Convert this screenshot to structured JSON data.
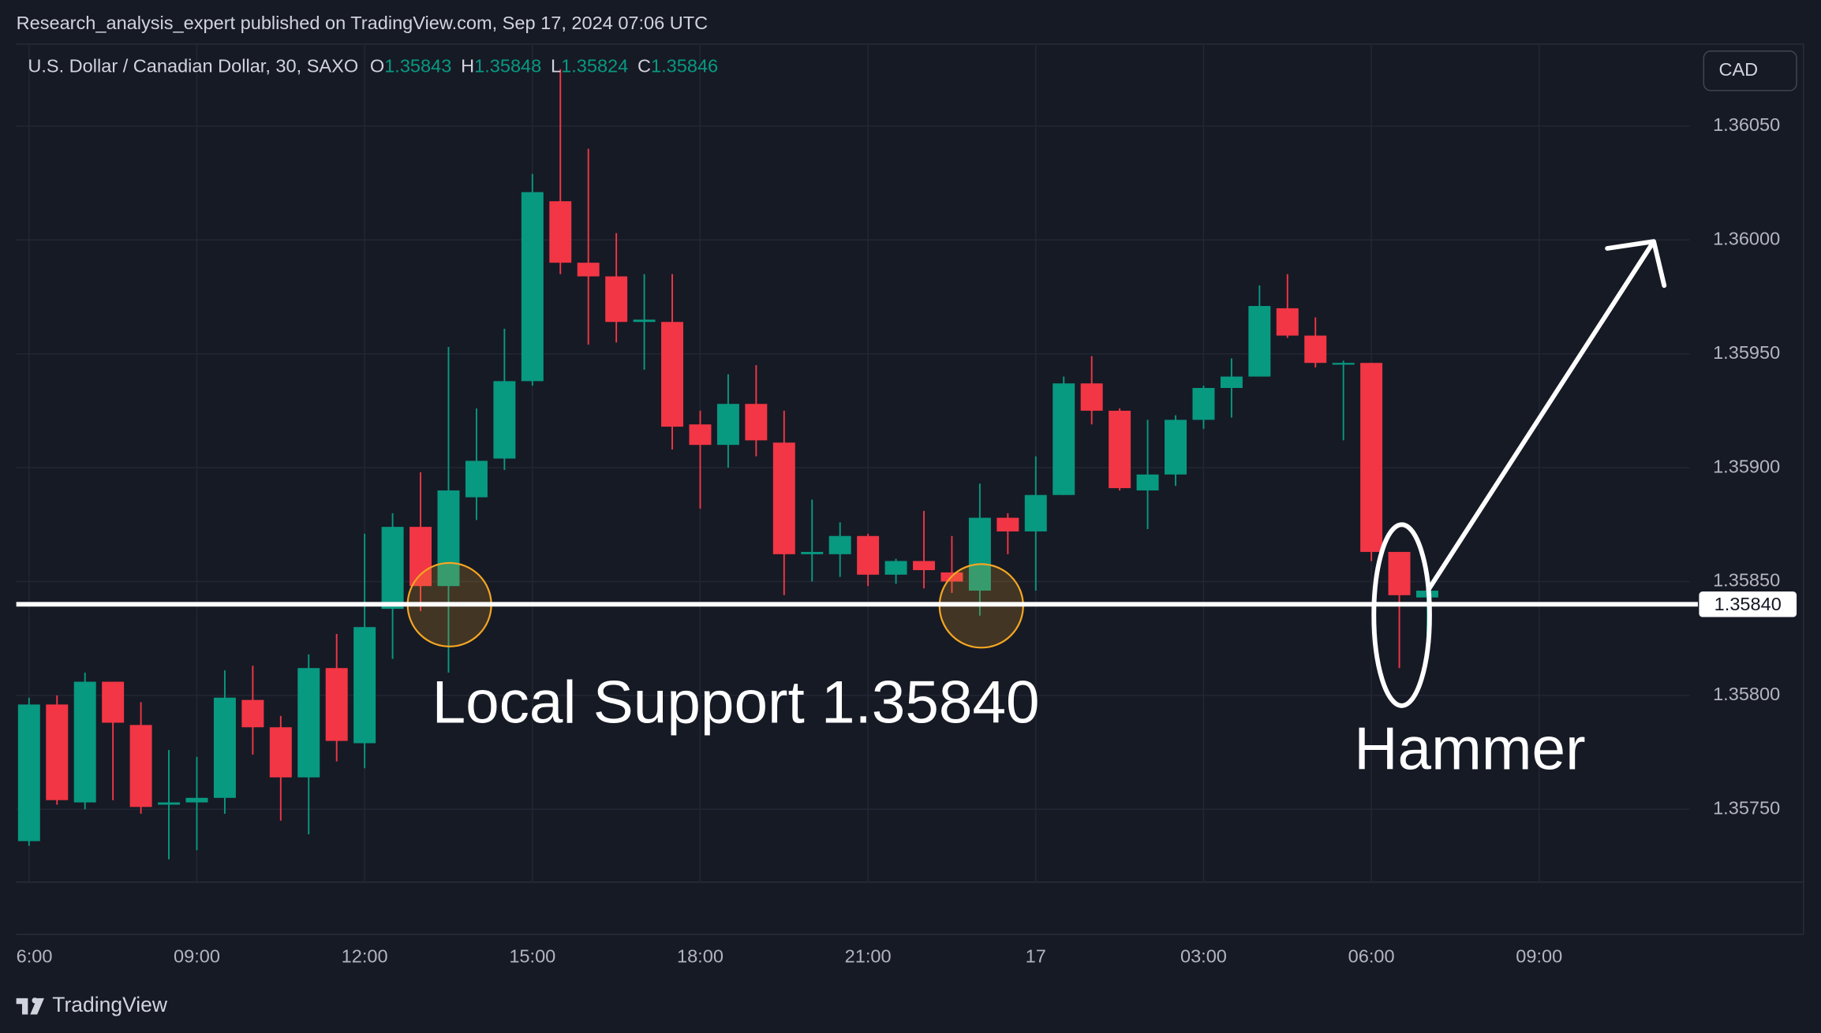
{
  "publisher_line": "Research_analysis_expert published on TradingView.com, Sep 17, 2024 07:06 UTC",
  "brand": "TradingView",
  "currency_button": "CAD",
  "chart_data": {
    "type": "candlestick",
    "title": "U.S. Dollar / Canadian Dollar, 30, SAXO",
    "ohlc_labels": [
      "O",
      "H",
      "L",
      "C"
    ],
    "up_color": "#089981",
    "down_color": "#f23645",
    "categories": [
      "6:00",
      null,
      null,
      null,
      null,
      null,
      "09:00",
      null,
      null,
      null,
      null,
      null,
      "12:00",
      null,
      null,
      null,
      null,
      null,
      "15:00",
      null,
      null,
      null,
      null,
      null,
      "18:00",
      null,
      null,
      null,
      null,
      null,
      "21:00",
      null,
      null,
      null,
      null,
      null,
      "17",
      null,
      null,
      null,
      null,
      null,
      "03:00",
      null,
      null,
      null,
      null,
      null,
      "06:00",
      null,
      null,
      null,
      null,
      null,
      "09:00",
      null,
      null,
      null,
      null,
      null
    ],
    "open": [
      1.35736,
      1.35796,
      1.35753,
      1.35806,
      1.35787,
      1.35752,
      1.35753,
      1.35755,
      1.35798,
      1.35786,
      1.35764,
      1.35812,
      1.35779,
      1.35838,
      1.35874,
      1.35848,
      1.35887,
      1.35904,
      1.35938,
      1.36017,
      1.3599,
      1.35984,
      1.35964,
      1.35964,
      1.35919,
      1.3591,
      1.35928,
      1.35911,
      1.35862,
      1.35862,
      1.3587,
      1.35853,
      1.35859,
      1.35854,
      1.35846,
      1.35878,
      1.35872,
      1.35888,
      1.35937,
      1.35925,
      1.3589,
      1.35897,
      1.35921,
      1.35935,
      1.3594,
      1.3597,
      1.35958,
      1.35946,
      1.35946,
      1.35863,
      1.35843,
      null,
      null,
      null,
      null,
      null,
      null,
      null,
      null,
      null
    ],
    "high": [
      1.35799,
      1.358,
      1.3581,
      1.35806,
      1.35797,
      1.35776,
      1.35773,
      1.35811,
      1.35813,
      1.35791,
      1.35818,
      1.35827,
      1.35871,
      1.3588,
      1.35898,
      1.35953,
      1.35926,
      1.35961,
      1.36029,
      1.36075,
      1.3604,
      1.36003,
      1.35985,
      1.35985,
      1.35925,
      1.35941,
      1.35945,
      1.35925,
      1.35886,
      1.35876,
      1.35871,
      1.3586,
      1.35881,
      1.3587,
      1.35893,
      1.3588,
      1.35905,
      1.3594,
      1.35949,
      1.35926,
      1.35921,
      1.35923,
      1.35936,
      1.35948,
      1.3598,
      1.35985,
      1.35966,
      1.35947,
      1.35946,
      1.35863,
      1.35848,
      null,
      null,
      null,
      null,
      null,
      null,
      null,
      null,
      null
    ],
    "low": [
      1.35734,
      1.35752,
      1.3575,
      1.35754,
      1.35748,
      1.35728,
      1.35732,
      1.35748,
      1.35774,
      1.35745,
      1.35739,
      1.35771,
      1.35768,
      1.35816,
      1.35837,
      1.3581,
      1.35877,
      1.35899,
      1.35936,
      1.35985,
      1.35954,
      1.35955,
      1.35943,
      1.35908,
      1.35882,
      1.359,
      1.35905,
      1.35844,
      1.3585,
      1.35852,
      1.35848,
      1.35849,
      1.35847,
      1.35845,
      1.35835,
      1.35862,
      1.35846,
      1.35888,
      1.35919,
      1.3589,
      1.35873,
      1.35892,
      1.35917,
      1.35922,
      1.3594,
      1.35957,
      1.35944,
      1.35912,
      1.35859,
      1.35812,
      1.35824,
      null,
      null,
      null,
      null,
      null,
      null,
      null,
      null,
      null
    ],
    "close": [
      1.35796,
      1.35754,
      1.35806,
      1.35788,
      1.35751,
      1.35753,
      1.35755,
      1.35799,
      1.35786,
      1.35764,
      1.35812,
      1.3578,
      1.3583,
      1.35874,
      1.35848,
      1.3589,
      1.35903,
      1.35938,
      1.36021,
      1.3599,
      1.35984,
      1.35964,
      1.35965,
      1.35918,
      1.3591,
      1.35928,
      1.35912,
      1.35862,
      1.35863,
      1.3587,
      1.35853,
      1.35859,
      1.35855,
      1.3585,
      1.35878,
      1.35872,
      1.35888,
      1.35937,
      1.35925,
      1.35891,
      1.35897,
      1.35921,
      1.35935,
      1.3594,
      1.35971,
      1.35958,
      1.35946,
      1.35946,
      1.35863,
      1.35844,
      1.35846,
      null,
      null,
      null,
      null,
      null,
      null,
      null,
      null,
      null
    ],
    "ylim": [
      1.35718,
      1.36086
    ],
    "yticks": [
      {
        "value": 1.3575,
        "label": "1.35750"
      },
      {
        "value": 1.358,
        "label": "1.35800"
      },
      {
        "value": 1.3585,
        "label": "1.35850"
      },
      {
        "value": 1.359,
        "label": "1.35900"
      },
      {
        "value": 1.3595,
        "label": "1.35950"
      },
      {
        "value": 1.36,
        "label": "1.36000"
      },
      {
        "value": 1.3605,
        "label": "1.36050"
      }
    ],
    "grid": true,
    "support_line": {
      "value": 1.3584,
      "label": "1.35840"
    },
    "annotations": [
      "Local Support 1.35840",
      "Hammer"
    ]
  }
}
